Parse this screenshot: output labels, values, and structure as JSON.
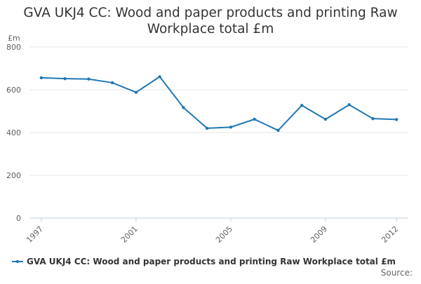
{
  "page": {
    "title_line1": "GVA UKJ4 CC: Wood and paper products and printing Raw",
    "title_line2": "Workplace total £m",
    "source_label": "Source:"
  },
  "chart_data": {
    "type": "line",
    "title": "GVA UKJ4 CC: Wood and paper products and printing Raw Workplace total £m",
    "ylabel": "£m",
    "xlabel": "",
    "x": [
      1997,
      1998,
      1999,
      2000,
      2001,
      2002,
      2003,
      2004,
      2005,
      2006,
      2007,
      2008,
      2009,
      2010,
      2011,
      2012
    ],
    "x_tick_labels": [
      "1997",
      "2001",
      "2005",
      "2009",
      "2012"
    ],
    "x_tick_values": [
      1997,
      2001,
      2005,
      2009,
      2012
    ],
    "y_tick_labels": [
      "0",
      "200",
      "400",
      "600",
      "800"
    ],
    "y_tick_values": [
      0,
      200,
      400,
      600,
      800
    ],
    "ylim": [
      0,
      800
    ],
    "grid": true,
    "legend_placement": "bottom",
    "series": [
      {
        "name": "GVA UKJ4 CC: Wood and paper products and printing Raw Workplace total £m",
        "color": "#1f77b4",
        "values": [
          656,
          652,
          650,
          633,
          588,
          661,
          517,
          420,
          425,
          462,
          410,
          527,
          462,
          530,
          465,
          461
        ]
      }
    ]
  }
}
